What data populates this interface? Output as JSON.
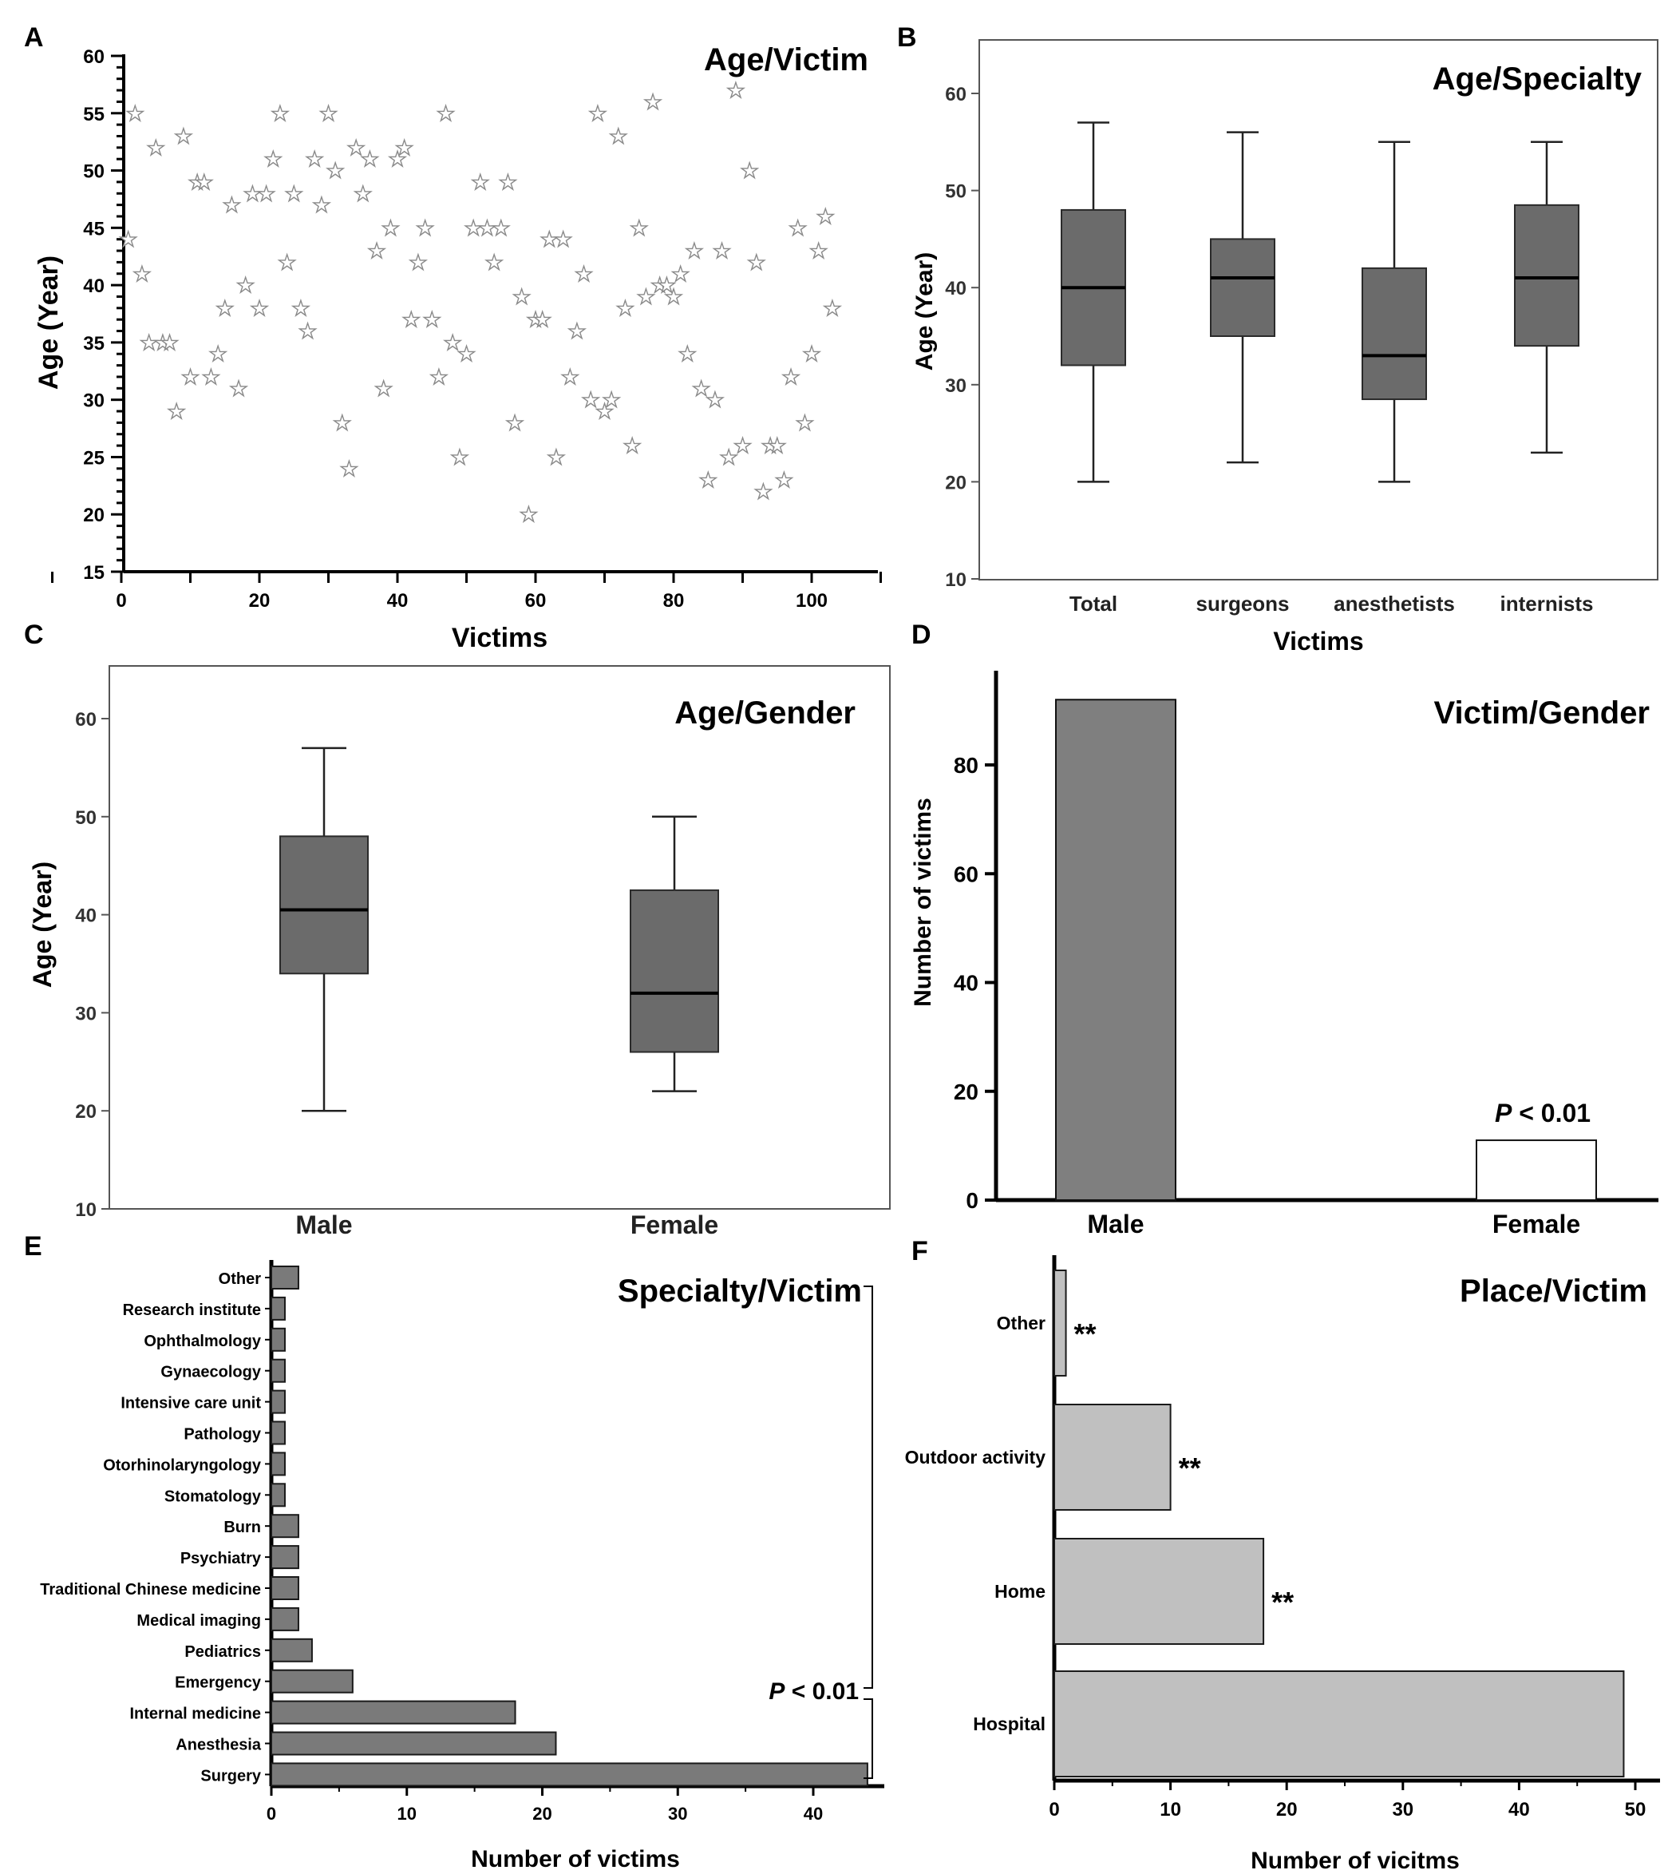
{
  "chart_data": [
    {
      "panel": "A",
      "type": "scatter",
      "title": "Age/Victim",
      "xlabel": "Victims",
      "ylabel": "Age (Year)",
      "xlim": [
        -10,
        110
      ],
      "ylim": [
        15,
        60
      ],
      "xticks": [
        0,
        20,
        40,
        60,
        80,
        100
      ],
      "yticks": [
        15,
        20,
        25,
        30,
        35,
        40,
        45,
        50,
        55,
        60
      ],
      "marker": "star",
      "points": [
        [
          1,
          44
        ],
        [
          2,
          55
        ],
        [
          3,
          41
        ],
        [
          4,
          35
        ],
        [
          5,
          52
        ],
        [
          6,
          35
        ],
        [
          7,
          35
        ],
        [
          8,
          29
        ],
        [
          9,
          53
        ],
        [
          10,
          32
        ],
        [
          11,
          49
        ],
        [
          12,
          49
        ],
        [
          13,
          32
        ],
        [
          14,
          34
        ],
        [
          15,
          38
        ],
        [
          16,
          47
        ],
        [
          17,
          31
        ],
        [
          18,
          40
        ],
        [
          19,
          48
        ],
        [
          20,
          38
        ],
        [
          21,
          48
        ],
        [
          22,
          51
        ],
        [
          23,
          55
        ],
        [
          24,
          42
        ],
        [
          25,
          48
        ],
        [
          26,
          38
        ],
        [
          27,
          36
        ],
        [
          28,
          51
        ],
        [
          29,
          47
        ],
        [
          30,
          55
        ],
        [
          31,
          50
        ],
        [
          32,
          28
        ],
        [
          33,
          24
        ],
        [
          34,
          52
        ],
        [
          35,
          48
        ],
        [
          36,
          51
        ],
        [
          37,
          43
        ],
        [
          38,
          31
        ],
        [
          39,
          45
        ],
        [
          40,
          51
        ],
        [
          41,
          52
        ],
        [
          42,
          37
        ],
        [
          43,
          42
        ],
        [
          44,
          45
        ],
        [
          45,
          37
        ],
        [
          46,
          32
        ],
        [
          47,
          55
        ],
        [
          48,
          35
        ],
        [
          49,
          25
        ],
        [
          50,
          34
        ],
        [
          51,
          45
        ],
        [
          52,
          49
        ],
        [
          53,
          45
        ],
        [
          54,
          42
        ],
        [
          55,
          45
        ],
        [
          56,
          49
        ],
        [
          57,
          28
        ],
        [
          58,
          39
        ],
        [
          59,
          20
        ],
        [
          60,
          37
        ],
        [
          61,
          37
        ],
        [
          62,
          44
        ],
        [
          63,
          25
        ],
        [
          64,
          44
        ],
        [
          65,
          32
        ],
        [
          66,
          36
        ],
        [
          67,
          41
        ],
        [
          68,
          30
        ],
        [
          69,
          55
        ],
        [
          70,
          29
        ],
        [
          71,
          30
        ],
        [
          72,
          53
        ],
        [
          73,
          38
        ],
        [
          74,
          26
        ],
        [
          75,
          45
        ],
        [
          76,
          39
        ],
        [
          77,
          56
        ],
        [
          78,
          40
        ],
        [
          79,
          40
        ],
        [
          80,
          39
        ],
        [
          81,
          41
        ],
        [
          82,
          34
        ],
        [
          83,
          43
        ],
        [
          84,
          31
        ],
        [
          85,
          23
        ],
        [
          86,
          30
        ],
        [
          87,
          43
        ],
        [
          88,
          25
        ],
        [
          89,
          57
        ],
        [
          90,
          26
        ],
        [
          91,
          50
        ],
        [
          92,
          42
        ],
        [
          93,
          22
        ],
        [
          94,
          26
        ],
        [
          95,
          26
        ],
        [
          96,
          23
        ],
        [
          97,
          32
        ],
        [
          98,
          45
        ],
        [
          99,
          28
        ],
        [
          100,
          34
        ],
        [
          101,
          43
        ],
        [
          102,
          46
        ],
        [
          103,
          38
        ]
      ]
    },
    {
      "panel": "B",
      "type": "box",
      "title": "Age/Specialty",
      "xlabel": "Victims",
      "ylabel": "Age (Year)",
      "ylim": [
        10,
        65
      ],
      "yticks": [
        10,
        20,
        30,
        40,
        50,
        60
      ],
      "categories": [
        "Total",
        "surgeons",
        "anesthetists",
        "internists"
      ],
      "boxes": [
        {
          "min": 20,
          "q1": 32,
          "median": 40,
          "q3": 48,
          "max": 57
        },
        {
          "min": 22,
          "q1": 35,
          "median": 41,
          "q3": 45,
          "max": 56
        },
        {
          "min": 20,
          "q1": 28.5,
          "median": 33,
          "q3": 42,
          "max": 55
        },
        {
          "min": 23,
          "q1": 34,
          "median": 41,
          "q3": 48.5,
          "max": 55
        }
      ]
    },
    {
      "panel": "C",
      "type": "box",
      "title": "Age/Gender",
      "ylabel": "Age (Year)",
      "ylim": [
        10,
        65
      ],
      "yticks": [
        10,
        20,
        30,
        40,
        50,
        60
      ],
      "categories": [
        "Male",
        "Female"
      ],
      "boxes": [
        {
          "min": 20,
          "q1": 34,
          "median": 40.5,
          "q3": 48,
          "max": 57
        },
        {
          "min": 22,
          "q1": 26,
          "median": 32,
          "q3": 42.5,
          "max": 50
        }
      ]
    },
    {
      "panel": "D",
      "type": "bar",
      "title": "Victim/Gender",
      "ylabel": "Number of victims",
      "ylim": [
        0,
        95
      ],
      "yticks": [
        0,
        20,
        40,
        60,
        80
      ],
      "categories": [
        "Male",
        "Female"
      ],
      "values": [
        92,
        11
      ],
      "colors": [
        "#7f7f7f",
        "#ffffff"
      ],
      "annotation": "P < 0.01"
    },
    {
      "panel": "E",
      "type": "bar",
      "orientation": "horizontal",
      "title": "Specialty/Victim",
      "xlabel": "Number of victims",
      "xlim": [
        0,
        45
      ],
      "xticks": [
        0,
        10,
        20,
        30,
        40
      ],
      "categories": [
        "Other",
        "Research institute",
        "Ophthalmology",
        "Gynaecology",
        "Intensive care unit",
        "Pathology",
        "Otorhinolaryngology",
        "Stomatology",
        "Burn",
        "Psychiatry",
        "Traditional Chinese medicine",
        "Medical imaging",
        "Pediatrics",
        "Emergency",
        "Internal medicine",
        "Anesthesia",
        "Surgery"
      ],
      "values": [
        2,
        1,
        1,
        1,
        1,
        1,
        1,
        1,
        2,
        2,
        2,
        2,
        3,
        6,
        18,
        21,
        44
      ],
      "annotation": "P < 0.01"
    },
    {
      "panel": "F",
      "type": "bar",
      "orientation": "horizontal",
      "title": "Place/Victim",
      "xlabel": "Number of vicitms",
      "xlim": [
        0,
        52
      ],
      "xticks": [
        0,
        10,
        20,
        30,
        40,
        50
      ],
      "categories": [
        "Other",
        "Outdoor activity",
        "Home",
        "Hospital"
      ],
      "values": [
        1,
        10,
        18,
        49
      ],
      "markers": [
        "**",
        "**",
        "**",
        ""
      ]
    }
  ],
  "panel_letters": [
    "A",
    "B",
    "C",
    "D",
    "E",
    "F"
  ],
  "p_value_prefix": "P",
  "p_value_suffix": " < 0.01"
}
